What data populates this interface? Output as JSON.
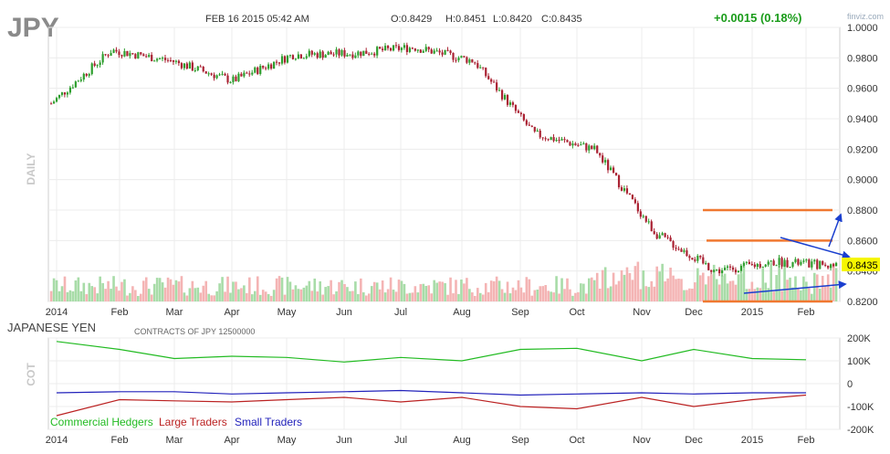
{
  "header": {
    "symbol": "JPY",
    "date": "FEB 16 2015 05:42 AM",
    "open": "O:0.8429",
    "high": "H:0.8451",
    "low": "L:0.8420",
    "close": "C:0.8435",
    "change": "+0.0015 (0.18%)",
    "brand": "finviz.com"
  },
  "price_panel": {
    "side_label": "DAILY",
    "price_tag": "0.8435",
    "y_ticks": [
      "1.0000",
      "0.9800",
      "0.9600",
      "0.9400",
      "0.9200",
      "0.9000",
      "0.8800",
      "0.8600",
      "0.8400",
      "0.8200"
    ],
    "x_ticks": [
      "2014",
      "Feb",
      "Mar",
      "Apr",
      "May",
      "Jun",
      "Jul",
      "Aug",
      "Sep",
      "Oct",
      "Nov",
      "Dec",
      "2015",
      "Feb"
    ]
  },
  "cot_panel": {
    "title": "JAPANESE YEN",
    "contracts": "CONTRACTS OF JPY 12500000",
    "side_label": "COT",
    "y_ticks": [
      "200K",
      "100K",
      "0",
      "-100K",
      "-200K"
    ],
    "legend": [
      {
        "label": "Commercial Hedgers",
        "color": "#22bb22"
      },
      {
        "label": "Large Traders",
        "color": "#bb2222"
      },
      {
        "label": "Small Traders",
        "color": "#2222bb"
      }
    ],
    "x_ticks": [
      "2014",
      "Feb",
      "Mar",
      "Apr",
      "May",
      "Jun",
      "Jul",
      "Aug",
      "Sep",
      "Oct",
      "Nov",
      "Dec",
      "2015",
      "Feb"
    ]
  },
  "colors": {
    "up_candle": "#2e9e2e",
    "down_candle": "#aa2233",
    "vol_up": "#a8dca8",
    "vol_down": "#f4b4b4",
    "resistance": "#f07830",
    "trend": "#1a3fcf",
    "change": "#1a9c1a",
    "tag_bg": "#f6f600"
  },
  "chart_data": [
    {
      "type": "candlestick",
      "title": "JPY",
      "ylabel": "DAILY",
      "ylim": [
        0.82,
        1.0
      ],
      "x": [
        "2014",
        "Feb",
        "Mar",
        "Apr",
        "May",
        "Jun",
        "Jul",
        "Aug",
        "Sep",
        "Oct",
        "Nov",
        "Dec",
        "2015",
        "Feb"
      ],
      "close_path": [
        {
          "x": "2014",
          "y": 0.95
        },
        {
          "x": "Feb",
          "y": 0.985
        },
        {
          "x": "Mar",
          "y": 0.978
        },
        {
          "x": "Apr",
          "y": 0.965
        },
        {
          "x": "May",
          "y": 0.982
        },
        {
          "x": "Jun",
          "y": 0.983
        },
        {
          "x": "Jul",
          "y": 0.987
        },
        {
          "x": "Aug",
          "y": 0.978
        },
        {
          "x": "Sep",
          "y": 0.93
        },
        {
          "x": "Oct",
          "y": 0.92
        },
        {
          "x": "Nov",
          "y": 0.865
        },
        {
          "x": "Dec",
          "y": 0.84
        },
        {
          "x": "2015",
          "y": 0.846
        },
        {
          "x": "Feb",
          "y": 0.8435
        }
      ],
      "annotations": {
        "resistance_levels": [
          0.88,
          0.86
        ],
        "support_level": 0.82,
        "last_price": 0.8435
      }
    },
    {
      "type": "line",
      "title": "JAPANESE YEN",
      "ylabel": "COT",
      "ylim": [
        -200,
        200
      ],
      "x": [
        "2014",
        "Feb",
        "Mar",
        "Apr",
        "May",
        "Jun",
        "Jul",
        "Aug",
        "Sep",
        "Oct",
        "Nov",
        "Dec",
        "2015",
        "Feb"
      ],
      "series": [
        {
          "name": "Commercial Hedgers",
          "values": [
            185,
            150,
            110,
            120,
            115,
            95,
            115,
            100,
            150,
            155,
            100,
            150,
            110,
            105
          ]
        },
        {
          "name": "Large Traders",
          "values": [
            -140,
            -70,
            -75,
            -80,
            -70,
            -60,
            -80,
            -60,
            -100,
            -110,
            -60,
            -100,
            -70,
            -50
          ]
        },
        {
          "name": "Small Traders",
          "values": [
            -40,
            -35,
            -35,
            -45,
            -40,
            -35,
            -30,
            -40,
            -50,
            -45,
            -40,
            -45,
            -40,
            -40
          ]
        }
      ]
    }
  ]
}
